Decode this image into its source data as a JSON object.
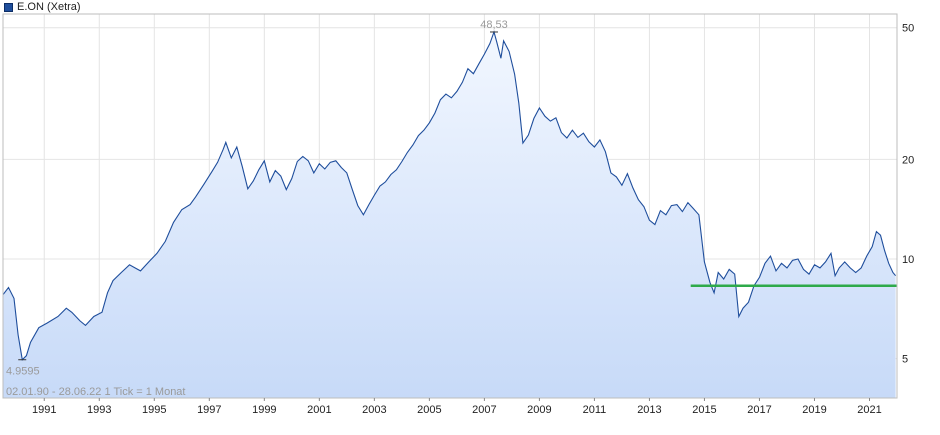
{
  "legend": {
    "label": "E.ON (Xetra)",
    "color": "#1f4e9c"
  },
  "footer": {
    "text": "02.01.90 - 28.06.22   1 Tick = 1 Monat"
  },
  "chart_data": {
    "type": "area",
    "scale": "log",
    "grid": true,
    "ylim": [
      3.8,
      55
    ],
    "xlim": [
      1990.0,
      2022.5
    ],
    "y_ticks": [
      5,
      10,
      20,
      50
    ],
    "x_ticks": [
      "1991",
      "1993",
      "1995",
      "1997",
      "1999",
      "2001",
      "2003",
      "2005",
      "2007",
      "2009",
      "2011",
      "2013",
      "2015",
      "2017",
      "2019",
      "2021"
    ],
    "line_color": "#1f4e9c",
    "fill_top": "#f2f7ff",
    "fill_bottom": "#c7daf8",
    "annotations": {
      "max_label": "48,53",
      "max": [
        2007.85,
        48.53
      ],
      "min_label": "4.9595",
      "min": [
        1990.7,
        4.9595
      ]
    },
    "horizontal_line": {
      "y": 8.3,
      "x_start": 2015.0,
      "x_end": 2022.5,
      "color": "#2eaa4a"
    },
    "points": [
      [
        1990.0,
        7.8
      ],
      [
        1990.2,
        8.2
      ],
      [
        1990.4,
        7.6
      ],
      [
        1990.55,
        5.9
      ],
      [
        1990.7,
        4.96
      ],
      [
        1990.85,
        5.1
      ],
      [
        1991.0,
        5.6
      ],
      [
        1991.3,
        6.2
      ],
      [
        1991.6,
        6.4
      ],
      [
        1992.0,
        6.7
      ],
      [
        1992.3,
        7.1
      ],
      [
        1992.5,
        6.9
      ],
      [
        1992.8,
        6.5
      ],
      [
        1993.0,
        6.3
      ],
      [
        1993.3,
        6.7
      ],
      [
        1993.6,
        6.9
      ],
      [
        1993.8,
        7.9
      ],
      [
        1994.0,
        8.6
      ],
      [
        1994.3,
        9.1
      ],
      [
        1994.6,
        9.6
      ],
      [
        1994.8,
        9.4
      ],
      [
        1995.0,
        9.2
      ],
      [
        1995.3,
        9.8
      ],
      [
        1995.6,
        10.4
      ],
      [
        1995.9,
        11.3
      ],
      [
        1996.2,
        12.9
      ],
      [
        1996.5,
        14.1
      ],
      [
        1996.8,
        14.6
      ],
      [
        1997.0,
        15.4
      ],
      [
        1997.3,
        16.8
      ],
      [
        1997.6,
        18.4
      ],
      [
        1997.8,
        19.6
      ],
      [
        1998.0,
        21.4
      ],
      [
        1998.1,
        22.5
      ],
      [
        1998.3,
        20.2
      ],
      [
        1998.5,
        21.8
      ],
      [
        1998.7,
        19.0
      ],
      [
        1998.9,
        16.3
      ],
      [
        1999.1,
        17.2
      ],
      [
        1999.3,
        18.6
      ],
      [
        1999.5,
        19.8
      ],
      [
        1999.7,
        17.1
      ],
      [
        1999.9,
        18.5
      ],
      [
        2000.1,
        17.8
      ],
      [
        2000.3,
        16.2
      ],
      [
        2000.5,
        17.5
      ],
      [
        2000.7,
        19.7
      ],
      [
        2000.9,
        20.4
      ],
      [
        2001.1,
        19.8
      ],
      [
        2001.3,
        18.2
      ],
      [
        2001.5,
        19.4
      ],
      [
        2001.7,
        18.7
      ],
      [
        2001.9,
        19.6
      ],
      [
        2002.1,
        19.8
      ],
      [
        2002.3,
        18.9
      ],
      [
        2002.5,
        18.2
      ],
      [
        2002.7,
        16.2
      ],
      [
        2002.9,
        14.5
      ],
      [
        2003.1,
        13.6
      ],
      [
        2003.3,
        14.6
      ],
      [
        2003.5,
        15.6
      ],
      [
        2003.7,
        16.6
      ],
      [
        2003.9,
        17.1
      ],
      [
        2004.1,
        18.0
      ],
      [
        2004.3,
        18.6
      ],
      [
        2004.5,
        19.7
      ],
      [
        2004.7,
        21.0
      ],
      [
        2004.9,
        22.1
      ],
      [
        2005.1,
        23.6
      ],
      [
        2005.3,
        24.5
      ],
      [
        2005.5,
        25.8
      ],
      [
        2005.7,
        27.6
      ],
      [
        2005.9,
        30.3
      ],
      [
        2006.1,
        31.5
      ],
      [
        2006.3,
        30.7
      ],
      [
        2006.5,
        32.1
      ],
      [
        2006.7,
        34.2
      ],
      [
        2006.9,
        37.6
      ],
      [
        2007.1,
        36.3
      ],
      [
        2007.3,
        38.9
      ],
      [
        2007.5,
        41.6
      ],
      [
        2007.7,
        44.8
      ],
      [
        2007.85,
        48.53
      ],
      [
        2007.95,
        45.2
      ],
      [
        2008.1,
        40.4
      ],
      [
        2008.2,
        45.6
      ],
      [
        2008.4,
        42.4
      ],
      [
        2008.6,
        36.2
      ],
      [
        2008.75,
        29.6
      ],
      [
        2008.9,
        22.4
      ],
      [
        2009.1,
        23.7
      ],
      [
        2009.3,
        26.6
      ],
      [
        2009.5,
        28.6
      ],
      [
        2009.7,
        27.0
      ],
      [
        2009.9,
        26.1
      ],
      [
        2010.1,
        26.7
      ],
      [
        2010.3,
        24.1
      ],
      [
        2010.5,
        23.2
      ],
      [
        2010.7,
        24.5
      ],
      [
        2010.9,
        23.3
      ],
      [
        2011.1,
        24.0
      ],
      [
        2011.3,
        22.6
      ],
      [
        2011.5,
        21.8
      ],
      [
        2011.7,
        22.9
      ],
      [
        2011.9,
        21.1
      ],
      [
        2012.1,
        18.2
      ],
      [
        2012.3,
        17.7
      ],
      [
        2012.5,
        16.7
      ],
      [
        2012.7,
        18.1
      ],
      [
        2012.9,
        16.4
      ],
      [
        2013.1,
        15.1
      ],
      [
        2013.3,
        14.4
      ],
      [
        2013.5,
        13.1
      ],
      [
        2013.7,
        12.7
      ],
      [
        2013.9,
        14.0
      ],
      [
        2014.1,
        13.6
      ],
      [
        2014.3,
        14.5
      ],
      [
        2014.5,
        14.6
      ],
      [
        2014.7,
        13.9
      ],
      [
        2014.9,
        14.8
      ],
      [
        2015.1,
        14.2
      ],
      [
        2015.3,
        13.6
      ],
      [
        2015.5,
        9.8
      ],
      [
        2015.7,
        8.5
      ],
      [
        2015.85,
        7.9
      ],
      [
        2016.0,
        9.1
      ],
      [
        2016.2,
        8.7
      ],
      [
        2016.4,
        9.3
      ],
      [
        2016.6,
        9.0
      ],
      [
        2016.75,
        6.7
      ],
      [
        2016.9,
        7.1
      ],
      [
        2017.1,
        7.4
      ],
      [
        2017.3,
        8.3
      ],
      [
        2017.5,
        8.8
      ],
      [
        2017.7,
        9.7
      ],
      [
        2017.9,
        10.2
      ],
      [
        2018.1,
        9.2
      ],
      [
        2018.3,
        9.7
      ],
      [
        2018.5,
        9.4
      ],
      [
        2018.7,
        9.9
      ],
      [
        2018.9,
        10.0
      ],
      [
        2019.1,
        9.3
      ],
      [
        2019.3,
        9.0
      ],
      [
        2019.5,
        9.6
      ],
      [
        2019.7,
        9.4
      ],
      [
        2019.9,
        9.8
      ],
      [
        2020.1,
        10.4
      ],
      [
        2020.25,
        8.9
      ],
      [
        2020.4,
        9.4
      ],
      [
        2020.6,
        9.8
      ],
      [
        2020.8,
        9.4
      ],
      [
        2021.0,
        9.1
      ],
      [
        2021.2,
        9.4
      ],
      [
        2021.4,
        10.2
      ],
      [
        2021.6,
        10.9
      ],
      [
        2021.75,
        12.1
      ],
      [
        2021.9,
        11.8
      ],
      [
        2022.05,
        10.6
      ],
      [
        2022.2,
        9.7
      ],
      [
        2022.35,
        9.1
      ],
      [
        2022.45,
        8.9
      ]
    ]
  }
}
